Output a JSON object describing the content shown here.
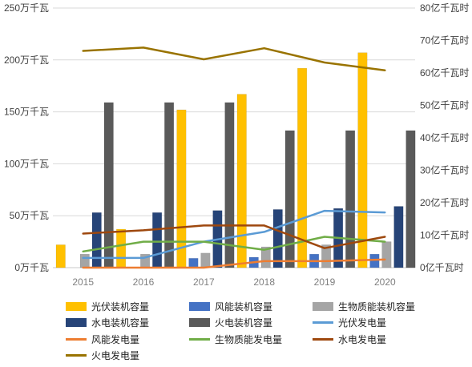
{
  "chart_data": {
    "type": "bar",
    "categories": [
      "2015",
      "2016",
      "2017",
      "2018",
      "2019",
      "2020"
    ],
    "left_axis": {
      "ticks": [
        "0万千瓦",
        "50万千瓦",
        "100万千瓦",
        "150万千瓦",
        "200万千瓦",
        "250万千瓦"
      ],
      "min": 0,
      "max": 250,
      "unit": "万千瓦"
    },
    "right_axis": {
      "ticks": [
        "0亿千瓦时",
        "10亿千瓦时",
        "20亿千瓦时",
        "30亿千瓦时",
        "40亿千瓦时",
        "50亿千瓦时",
        "60亿千瓦时",
        "70亿千瓦时",
        "80亿千瓦时"
      ],
      "min": 0,
      "max": 80,
      "unit": "亿千瓦时"
    },
    "grid": true,
    "legend_position": "bottom",
    "bar_series": [
      {
        "name": "光伏装机容量",
        "color": "#FFC000",
        "values": [
          22,
          37,
          152,
          167,
          192,
          207
        ]
      },
      {
        "name": "风能装机容量",
        "color": "#4472C4",
        "values": [
          0,
          0,
          9,
          10,
          13,
          13
        ]
      },
      {
        "name": "生物质能装机容量",
        "color": "#A5A5A5",
        "values": [
          13,
          13,
          14,
          20,
          22,
          25
        ]
      },
      {
        "name": "水电装机容量",
        "color": "#264478",
        "values": [
          53,
          53,
          55,
          56,
          57,
          59
        ]
      },
      {
        "name": "火电装机容量",
        "color": "#5A5A5A",
        "values": [
          159,
          159,
          159,
          132,
          132,
          132
        ]
      }
    ],
    "line_series": [
      {
        "name": "光伏发电量",
        "color": "#5B9BD5",
        "values": [
          3,
          3,
          8,
          11,
          17.5,
          17
        ]
      },
      {
        "name": "风能发电量",
        "color": "#ED7D31",
        "values": [
          0,
          0,
          0,
          2,
          2,
          2.5
        ]
      },
      {
        "name": "生物质能发电量",
        "color": "#70AD47",
        "values": [
          5,
          8,
          8,
          5.5,
          9.5,
          8
        ]
      },
      {
        "name": "水电发电量",
        "color": "#9E480E",
        "values": [
          10.5,
          11.5,
          13,
          13,
          6,
          9.5
        ]
      },
      {
        "name": "火电发电量",
        "color": "#997300",
        "values": [
          66.8,
          67.8,
          64.2,
          67.6,
          63.2,
          60.8
        ]
      }
    ],
    "legend": [
      "光伏装机容量",
      "风能装机容量",
      "生物质能装机容量",
      "水电装机容量",
      "火电装机容量",
      "光伏发电量",
      "风能发电量",
      "生物质能发电量",
      "水电发电量",
      "火电发电量"
    ]
  }
}
